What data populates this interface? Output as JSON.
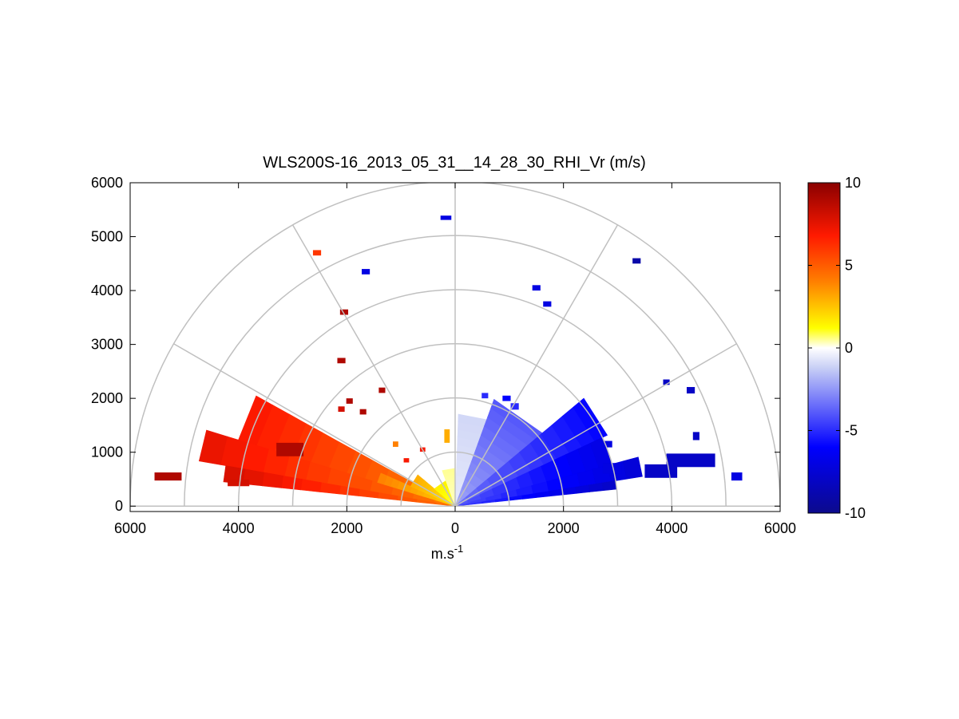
{
  "chart_data": {
    "type": "heatmap",
    "title": "WLS200S-16_2013_05_31__14_28_30_RHI_Vr (m/s)",
    "xlabel_base": "m.s",
    "xlabel_exp": "-1",
    "ylabel": "",
    "x_ticks": [
      "6000",
      "4000",
      "2000",
      "0",
      "2000",
      "4000",
      "6000"
    ],
    "x_tick_values": [
      -6000,
      -4000,
      -2000,
      0,
      2000,
      4000,
      6000
    ],
    "y_ticks": [
      "0",
      "1000",
      "2000",
      "3000",
      "4000",
      "5000",
      "6000"
    ],
    "y_tick_values": [
      0,
      1000,
      2000,
      3000,
      4000,
      5000,
      6000
    ],
    "xlim": [
      -6000,
      6000
    ],
    "ylim": [
      -100,
      6000
    ],
    "grid": "polar",
    "polar_grid": {
      "range_rings_m": [
        1000,
        2000,
        3000,
        4000,
        5000,
        6000
      ],
      "spokes_deg": [
        0,
        30,
        60,
        90,
        120,
        150,
        180
      ]
    },
    "colorbar": {
      "min": -10,
      "max": 10,
      "ticks": [
        "10",
        "5",
        "0",
        "-5",
        "-10"
      ],
      "tick_values": [
        10,
        5,
        0,
        -5,
        -10
      ],
      "colormap": "blue-white-red",
      "colors": [
        "#0c0a8c",
        "#0000ff",
        "#c8cff5",
        "#ffffff",
        "#ffff00",
        "#ff8000",
        "#ff1a00",
        "#8a0000"
      ]
    },
    "sectors": [
      {
        "name": "",
        "az_start_deg": 151,
        "az_end_deg": 165,
        "r_max_m": 4200,
        "vr_ms": 7
      },
      {
        "name": "",
        "az_start_deg": 163,
        "az_end_deg": 170,
        "r_max_m": 4800,
        "vr_ms": 7.5
      },
      {
        "name": "",
        "az_start_deg": 170,
        "az_end_deg": 174,
        "r_max_m": 4300,
        "vr_ms": 8
      },
      {
        "name": "",
        "az_start_deg": 156,
        "az_end_deg": 163,
        "r_max_m": 1500,
        "vr_ms": 4
      },
      {
        "name": "",
        "az_start_deg": 140,
        "az_end_deg": 156,
        "r_max_m": 900,
        "vr_ms": 3
      },
      {
        "name": "",
        "az_start_deg": 110,
        "az_end_deg": 140,
        "r_max_m": 500,
        "vr_ms": 1.5
      },
      {
        "name": "",
        "az_start_deg": 90,
        "az_end_deg": 110,
        "r_max_m": 700,
        "vr_ms": 0.5
      },
      {
        "name": "",
        "az_start_deg": 70,
        "az_end_deg": 88,
        "r_max_m": 1700,
        "vr_ms": -1
      },
      {
        "name": "",
        "az_start_deg": 40,
        "az_end_deg": 70,
        "r_max_m": 2100,
        "vr_ms": -4
      },
      {
        "name": "",
        "az_start_deg": 25,
        "az_end_deg": 40,
        "r_max_m": 3100,
        "vr_ms": -6
      },
      {
        "name": "",
        "az_start_deg": 14,
        "az_end_deg": 25,
        "r_max_m": 3000,
        "vr_ms": -7
      },
      {
        "name": "",
        "az_start_deg": 9,
        "az_end_deg": 15,
        "r_max_m": 3500,
        "vr_ms": -7.5
      },
      {
        "name": "",
        "az_start_deg": 6,
        "az_end_deg": 9,
        "r_max_m": 3000,
        "vr_ms": -8
      }
    ],
    "isolated_gates": [
      {
        "x": -5300,
        "y": 550,
        "w": 500,
        "h": 150,
        "vr_ms": 9
      },
      {
        "x": -4000,
        "y": 430,
        "w": 400,
        "h": 120,
        "vr_ms": 8
      },
      {
        "x": -3050,
        "y": 1050,
        "w": 500,
        "h": 250,
        "vr_ms": 9
      },
      {
        "x": -2550,
        "y": 4700,
        "w": 150,
        "h": 100,
        "vr_ms": 6
      },
      {
        "x": -1650,
        "y": 4350,
        "w": 150,
        "h": 100,
        "vr_ms": -7
      },
      {
        "x": -2050,
        "y": 3600,
        "w": 150,
        "h": 100,
        "vr_ms": 9
      },
      {
        "x": -2100,
        "y": 2700,
        "w": 150,
        "h": 100,
        "vr_ms": 9
      },
      {
        "x": -1950,
        "y": 1950,
        "w": 120,
        "h": 100,
        "vr_ms": 9
      },
      {
        "x": -2100,
        "y": 1800,
        "w": 120,
        "h": 100,
        "vr_ms": 8
      },
      {
        "x": -1700,
        "y": 1750,
        "w": 120,
        "h": 100,
        "vr_ms": 9
      },
      {
        "x": -1350,
        "y": 2150,
        "w": 120,
        "h": 100,
        "vr_ms": 9
      },
      {
        "x": -170,
        "y": 5350,
        "w": 200,
        "h": 80,
        "vr_ms": -7
      },
      {
        "x": 1500,
        "y": 4050,
        "w": 150,
        "h": 100,
        "vr_ms": -7
      },
      {
        "x": 1700,
        "y": 3750,
        "w": 150,
        "h": 100,
        "vr_ms": -7
      },
      {
        "x": 3350,
        "y": 4550,
        "w": 150,
        "h": 100,
        "vr_ms": -9
      },
      {
        "x": 3900,
        "y": 2300,
        "w": 120,
        "h": 100,
        "vr_ms": -8
      },
      {
        "x": 4350,
        "y": 2150,
        "w": 150,
        "h": 120,
        "vr_ms": -8
      },
      {
        "x": 4450,
        "y": 1300,
        "w": 120,
        "h": 150,
        "vr_ms": -8
      },
      {
        "x": 4350,
        "y": 850,
        "w": 900,
        "h": 250,
        "vr_ms": -8
      },
      {
        "x": 3800,
        "y": 650,
        "w": 600,
        "h": 250,
        "vr_ms": -8
      },
      {
        "x": 5200,
        "y": 550,
        "w": 200,
        "h": 150,
        "vr_ms": -7
      },
      {
        "x": 2900,
        "y": 700,
        "w": 350,
        "h": 200,
        "vr_ms": -7
      },
      {
        "x": 2800,
        "y": 1150,
        "w": 200,
        "h": 120,
        "vr_ms": -7
      },
      {
        "x": 950,
        "y": 2000,
        "w": 150,
        "h": 100,
        "vr_ms": -6
      },
      {
        "x": 1100,
        "y": 1850,
        "w": 150,
        "h": 120,
        "vr_ms": -5
      },
      {
        "x": 550,
        "y": 2050,
        "w": 120,
        "h": 100,
        "vr_ms": -5
      },
      {
        "x": -150,
        "y": 1300,
        "w": 100,
        "h": 250,
        "vr_ms": 3
      },
      {
        "x": -1100,
        "y": 1150,
        "w": 100,
        "h": 100,
        "vr_ms": 4
      },
      {
        "x": -600,
        "y": 1050,
        "w": 100,
        "h": 80,
        "vr_ms": 7
      },
      {
        "x": -900,
        "y": 850,
        "w": 100,
        "h": 80,
        "vr_ms": 7
      }
    ]
  }
}
